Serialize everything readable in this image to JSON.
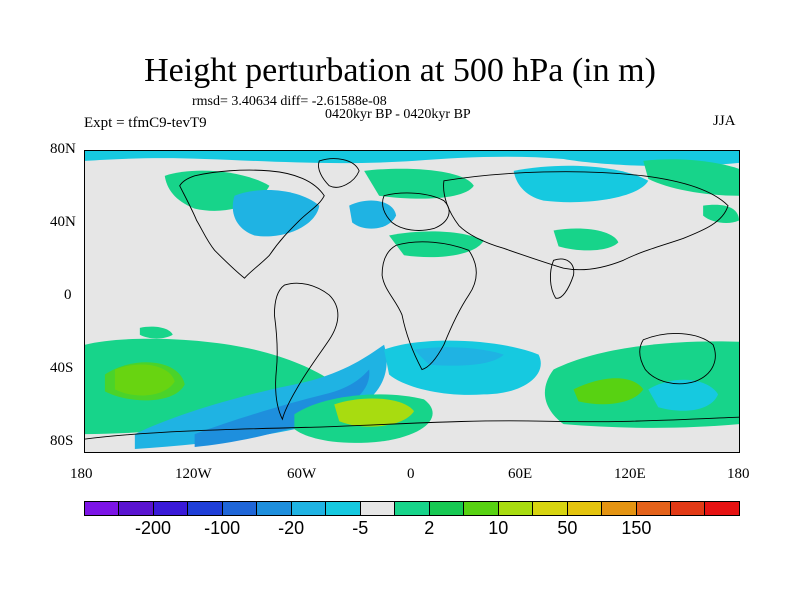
{
  "title": "Height perturbation at 500 hPa (in m)",
  "subtitle_line1": "rmsd= 3.40634 diff= -2.61588e-08",
  "subtitle_line2": "0420kyr BP - 0420kyr BP",
  "experiment": "Expt = tfmC9-tevT9",
  "season": "JJA",
  "lat_ticks": [
    "80N",
    "40N",
    "0",
    "40S",
    "80S"
  ],
  "lon_ticks": [
    "180",
    "120W",
    "60W",
    "0",
    "60E",
    "120E",
    "180"
  ],
  "colorbar": {
    "colors": [
      "#7c14e6",
      "#5a14d0",
      "#3a1ad8",
      "#1f3fd8",
      "#1f66d8",
      "#1e8fdd",
      "#1fb3e3",
      "#16c9e0",
      "#e6e6e6",
      "#17d48a",
      "#17c953",
      "#58d212",
      "#a8dc10",
      "#d7d410",
      "#e4c40e",
      "#e49412",
      "#e4621a",
      "#e23a16",
      "#e61212"
    ],
    "labels": [
      "-200",
      "-100",
      "-20",
      "-5",
      "2",
      "10",
      "50",
      "150"
    ]
  }
}
